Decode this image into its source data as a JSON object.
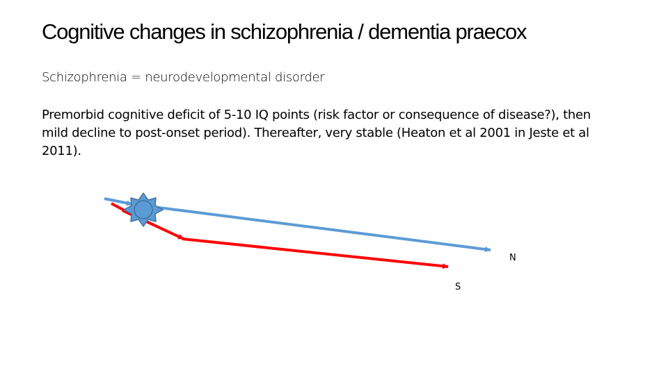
{
  "slide": {
    "title": "Cognitive changes in schizophrenia / dementia praecox",
    "subtitle": "Schizophrenia = neurodevelopmental disorder",
    "body": "Premorbid cognitive deficit of 5-10 IQ points (risk factor or consequence of disease?), then mild decline to post-onset period). Thereafter, very stable (Heaton et al 2001 in Jeste et al 2011)."
  },
  "diagram": {
    "normal_label": "N",
    "schizophrenia_label": "S",
    "colors": {
      "normal_line": "#5B9BD5",
      "schizophrenia_line": "#FF0000",
      "onset_star_fill": "#5B9BD5",
      "onset_star_stroke": "#4472C4"
    }
  }
}
